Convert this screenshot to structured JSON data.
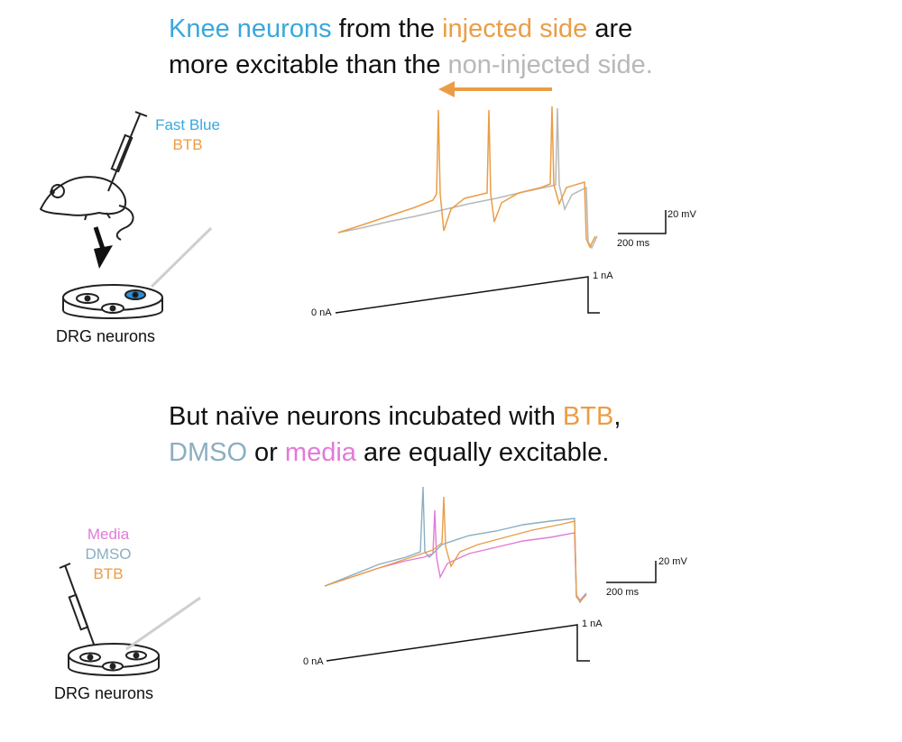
{
  "colors": {
    "blue": "#3aa7dc",
    "orange": "#eb9d45",
    "grey": "#b8b8b8",
    "pink": "#e27ad9",
    "steel": "#8aaec2",
    "purple": "#b48ad6"
  },
  "top_panel": {
    "headline": {
      "line1": {
        "part1": "Knee neurons",
        "part2": " from the ",
        "part3": "injected side",
        "part4": " are"
      },
      "line2": {
        "part1": "more excitable than the ",
        "part2": "non-injected side."
      }
    },
    "side_labels": {
      "label1": "Fast Blue",
      "label2": "BTB"
    },
    "cell_caption": "DRG neurons",
    "scale_bar": {
      "voltage": "20 mV",
      "time": "200 ms"
    },
    "ramp": {
      "start_label": "0 nA",
      "end_label": "1 nA"
    }
  },
  "bottom_panel": {
    "headline": {
      "line1": {
        "part1": "But naïve neurons incubated with ",
        "part2": "BTB",
        "part3": ","
      },
      "line2": {
        "part1": "DMSO",
        "part2": " or ",
        "part3": "media",
        "part4": " are equally excitable."
      }
    },
    "side_labels": {
      "label1": "Media",
      "label2": "DMSO",
      "label3": "BTB"
    },
    "cell_caption": "DRG neurons",
    "scale_bar": {
      "voltage": "20 mV",
      "time": "200 ms"
    },
    "ramp": {
      "start_label": "0 nA",
      "end_label": "1 nA"
    }
  },
  "icons": {
    "syringe": "syringe-icon",
    "mouse": "mouse-icon",
    "arrow": "arrow-down-icon",
    "dish": "petri-dish-icon",
    "left_arrow": "arrow-left-icon"
  }
}
